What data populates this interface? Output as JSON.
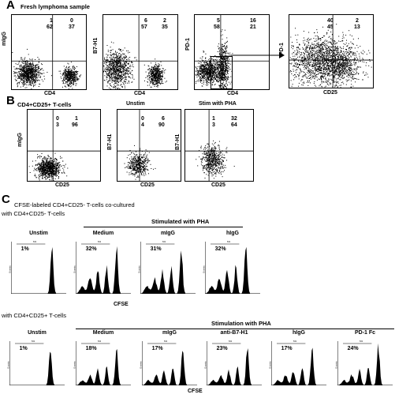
{
  "panelA": {
    "letter": "A",
    "title": "Fresh lymphoma sample",
    "plots": [
      {
        "ylabel": "mIgG",
        "xlabel": "CD4",
        "q": [
          "1",
          "0",
          "62",
          "37"
        ]
      },
      {
        "ylabel": "B7-H1",
        "xlabel": "CD4",
        "q": [
          "6",
          "2",
          "57",
          "35"
        ]
      },
      {
        "ylabel": "PD-1",
        "xlabel": "CD4",
        "q": [
          "5",
          "16",
          "58",
          "21"
        ]
      },
      {
        "ylabel": "PD-1",
        "xlabel": "CD25",
        "q": [
          "40",
          "2",
          "45",
          "13"
        ]
      }
    ]
  },
  "panelB": {
    "letter": "B",
    "title": "CD4+CD25+ T-cells",
    "plots": [
      {
        "header": "",
        "ylabel": "mIgG",
        "xlabel": "CD25",
        "q": [
          "0",
          "1",
          "3",
          "96"
        ]
      },
      {
        "header": "Unstim",
        "ylabel": "B7-H1",
        "xlabel": "CD25",
        "q": [
          "0",
          "6",
          "4",
          "90"
        ]
      },
      {
        "header": "Stim with PHA",
        "ylabel": "B7-H1",
        "xlabel": "CD25",
        "q": [
          "1",
          "32",
          "3",
          "64"
        ]
      }
    ]
  },
  "panelC": {
    "letter": "C",
    "title": "CFSE-labeled CD4+CD25- T-cells co-cultured",
    "row1": {
      "label": "with CD4+CD25- T-cells",
      "stim_header": "Stimulated with PHA",
      "xlabel": "CFSE",
      "hists": [
        {
          "title": "Unstim",
          "pct": "1%"
        },
        {
          "title": "Medium",
          "pct": "32%"
        },
        {
          "title": "mIgG",
          "pct": "31%"
        },
        {
          "title": "hIgG",
          "pct": "32%"
        }
      ]
    },
    "row2": {
      "label": "with CD4+CD25+ T-cells",
      "stim_header": "Stimulation with PHA",
      "xlabel": "CFSE",
      "hists": [
        {
          "title": "Unstim",
          "pct": "1%"
        },
        {
          "title": "Medium",
          "pct": "18%"
        },
        {
          "title": "mIgG",
          "pct": "17%"
        },
        {
          "title": "anti-B7-H1",
          "pct": "23%"
        },
        {
          "title": "hIgG",
          "pct": "17%"
        },
        {
          "title": "PD-1 Fc",
          "pct": "24%"
        }
      ]
    },
    "ylabel_tiny": "Events",
    "marker_tiny": "M1"
  }
}
